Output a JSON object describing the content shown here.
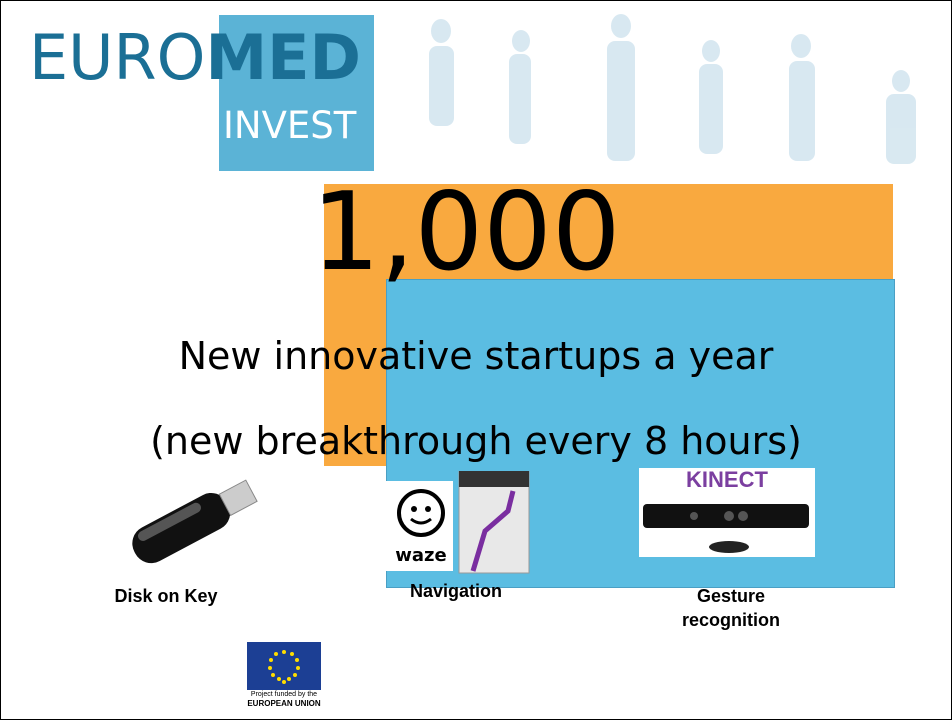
{
  "logo": {
    "euro": "EURO",
    "med": "MED",
    "invest": "INVEST"
  },
  "headline": "1,000",
  "lines": [
    "New innovative startups a year",
    "(new breakthrough every 8 hours)"
  ],
  "examples": [
    {
      "caption": "Disk on Key"
    },
    {
      "caption": "Navigation",
      "brand": "waze"
    },
    {
      "caption": "Gesture recognition",
      "brand": "KINECT"
    }
  ],
  "footer": {
    "line1": "Project funded by the",
    "line2": "EUROPEAN UNION"
  }
}
